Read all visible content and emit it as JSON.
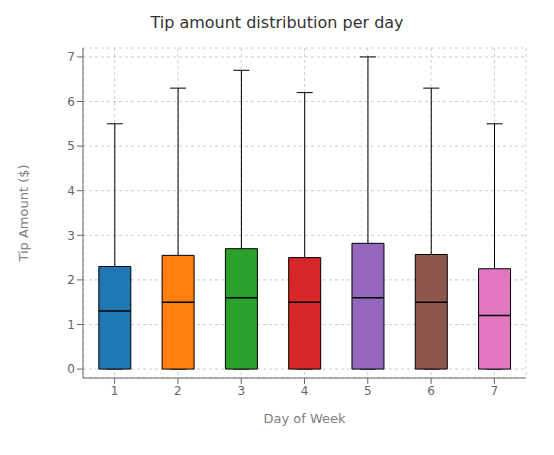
{
  "chart_data": {
    "type": "box",
    "title": "Tip amount distribution per day",
    "xlabel": "Day of Week",
    "ylabel": "Tip Amount ($)",
    "categories": [
      "1",
      "2",
      "3",
      "4",
      "5",
      "6",
      "7"
    ],
    "boxes": [
      {
        "whislo": 0.0,
        "q1": 0.0,
        "med": 1.3,
        "q3": 2.3,
        "whishi": 5.5
      },
      {
        "whislo": 0.0,
        "q1": 0.0,
        "med": 1.5,
        "q3": 2.55,
        "whishi": 6.3
      },
      {
        "whislo": 0.0,
        "q1": 0.0,
        "med": 1.6,
        "q3": 2.7,
        "whishi": 6.7
      },
      {
        "whislo": 0.0,
        "q1": 0.0,
        "med": 1.5,
        "q3": 2.5,
        "whishi": 6.2
      },
      {
        "whislo": 0.0,
        "q1": 0.0,
        "med": 1.6,
        "q3": 2.82,
        "whishi": 7.0
      },
      {
        "whislo": 0.0,
        "q1": 0.0,
        "med": 1.5,
        "q3": 2.57,
        "whishi": 6.3
      },
      {
        "whislo": 0.0,
        "q1": 0.0,
        "med": 1.2,
        "q3": 2.25,
        "whishi": 5.5
      }
    ],
    "colors": [
      "#1f77b4",
      "#ff7f0e",
      "#2ca02c",
      "#d62728",
      "#9467bd",
      "#8c564b",
      "#e377c2"
    ],
    "ylim": [
      -0.2,
      7.2
    ],
    "yticks": [
      0,
      1,
      2,
      3,
      4,
      5,
      6,
      7
    ],
    "grid": true
  }
}
